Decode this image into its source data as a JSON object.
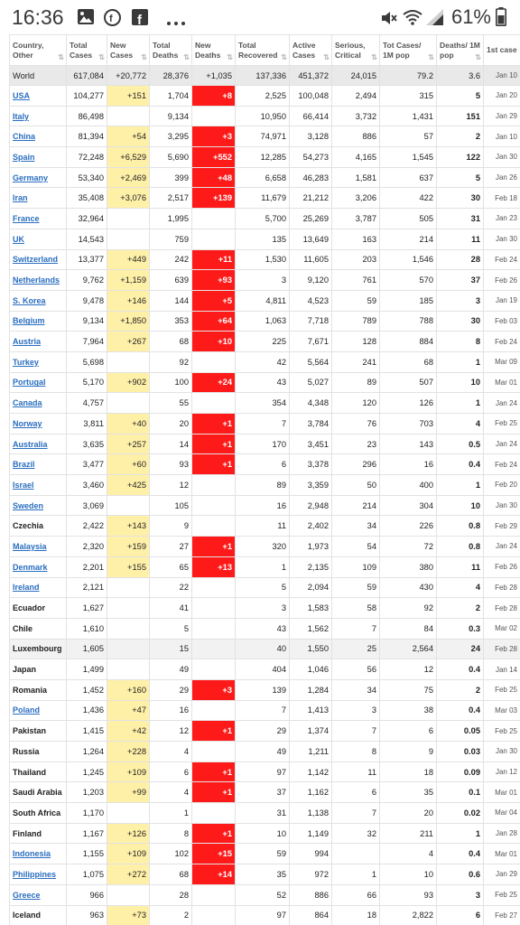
{
  "status_bar": {
    "time": "16:36",
    "battery_percent": "61%",
    "left_icons": [
      "image-icon",
      "facebook-messenger-icon",
      "facebook-icon",
      "more-dots-icon"
    ],
    "right_icons": [
      "mute-icon",
      "wifi-icon",
      "signal-icon",
      "battery-icon"
    ]
  },
  "table": {
    "headers": [
      {
        "key": "country",
        "label": "Country, Other"
      },
      {
        "key": "total_cases",
        "label": "Total Cases"
      },
      {
        "key": "new_cases",
        "label": "New Cases"
      },
      {
        "key": "total_deaths",
        "label": "Total Deaths"
      },
      {
        "key": "new_deaths",
        "label": "New Deaths"
      },
      {
        "key": "total_recovered",
        "label": "Total Recovered"
      },
      {
        "key": "active_cases",
        "label": "Active Cases"
      },
      {
        "key": "serious",
        "label": "Serious, Critical"
      },
      {
        "key": "per_million",
        "label": "Tot Cases/ 1M pop"
      },
      {
        "key": "deaths_per_million",
        "label": "Deaths/ 1M pop"
      },
      {
        "key": "first_case",
        "label": "1st case"
      }
    ],
    "world": {
      "country": "World",
      "total_cases": "617,084",
      "new_cases": "+20,772",
      "total_deaths": "28,376",
      "new_deaths": "+1,035",
      "total_recovered": "137,336",
      "active_cases": "451,372",
      "serious": "24,015",
      "per_million": "79.2",
      "deaths_per_million": "3.6",
      "first_case": "Jan 10"
    },
    "rows": [
      {
        "country": "USA",
        "link": true,
        "total_cases": "104,277",
        "new_cases": "+151",
        "total_deaths": "1,704",
        "new_deaths": "+8",
        "total_recovered": "2,525",
        "active_cases": "100,048",
        "serious": "2,494",
        "per_million": "315",
        "deaths_per_million": "5",
        "first_case": "Jan 20"
      },
      {
        "country": "Italy",
        "link": true,
        "total_cases": "86,498",
        "new_cases": "",
        "total_deaths": "9,134",
        "new_deaths": "",
        "total_recovered": "10,950",
        "active_cases": "66,414",
        "serious": "3,732",
        "per_million": "1,431",
        "deaths_per_million": "151",
        "first_case": "Jan 29"
      },
      {
        "country": "China",
        "link": true,
        "total_cases": "81,394",
        "new_cases": "+54",
        "total_deaths": "3,295",
        "new_deaths": "+3",
        "total_recovered": "74,971",
        "active_cases": "3,128",
        "serious": "886",
        "per_million": "57",
        "deaths_per_million": "2",
        "first_case": "Jan 10"
      },
      {
        "country": "Spain",
        "link": true,
        "total_cases": "72,248",
        "new_cases": "+6,529",
        "total_deaths": "5,690",
        "new_deaths": "+552",
        "total_recovered": "12,285",
        "active_cases": "54,273",
        "serious": "4,165",
        "per_million": "1,545",
        "deaths_per_million": "122",
        "first_case": "Jan 30"
      },
      {
        "country": "Germany",
        "link": true,
        "total_cases": "53,340",
        "new_cases": "+2,469",
        "total_deaths": "399",
        "new_deaths": "+48",
        "total_recovered": "6,658",
        "active_cases": "46,283",
        "serious": "1,581",
        "per_million": "637",
        "deaths_per_million": "5",
        "first_case": "Jan 26"
      },
      {
        "country": "Iran",
        "link": true,
        "total_cases": "35,408",
        "new_cases": "+3,076",
        "total_deaths": "2,517",
        "new_deaths": "+139",
        "total_recovered": "11,679",
        "active_cases": "21,212",
        "serious": "3,206",
        "per_million": "422",
        "deaths_per_million": "30",
        "first_case": "Feb 18"
      },
      {
        "country": "France",
        "link": true,
        "total_cases": "32,964",
        "new_cases": "",
        "total_deaths": "1,995",
        "new_deaths": "",
        "total_recovered": "5,700",
        "active_cases": "25,269",
        "serious": "3,787",
        "per_million": "505",
        "deaths_per_million": "31",
        "first_case": "Jan 23"
      },
      {
        "country": "UK",
        "link": true,
        "total_cases": "14,543",
        "new_cases": "",
        "total_deaths": "759",
        "new_deaths": "",
        "total_recovered": "135",
        "active_cases": "13,649",
        "serious": "163",
        "per_million": "214",
        "deaths_per_million": "11",
        "first_case": "Jan 30"
      },
      {
        "country": "Switzerland",
        "link": true,
        "total_cases": "13,377",
        "new_cases": "+449",
        "total_deaths": "242",
        "new_deaths": "+11",
        "total_recovered": "1,530",
        "active_cases": "11,605",
        "serious": "203",
        "per_million": "1,546",
        "deaths_per_million": "28",
        "first_case": "Feb 24"
      },
      {
        "country": "Netherlands",
        "link": true,
        "total_cases": "9,762",
        "new_cases": "+1,159",
        "total_deaths": "639",
        "new_deaths": "+93",
        "total_recovered": "3",
        "active_cases": "9,120",
        "serious": "761",
        "per_million": "570",
        "deaths_per_million": "37",
        "first_case": "Feb 26"
      },
      {
        "country": "S. Korea",
        "link": true,
        "total_cases": "9,478",
        "new_cases": "+146",
        "total_deaths": "144",
        "new_deaths": "+5",
        "total_recovered": "4,811",
        "active_cases": "4,523",
        "serious": "59",
        "per_million": "185",
        "deaths_per_million": "3",
        "first_case": "Jan 19"
      },
      {
        "country": "Belgium",
        "link": true,
        "total_cases": "9,134",
        "new_cases": "+1,850",
        "total_deaths": "353",
        "new_deaths": "+64",
        "total_recovered": "1,063",
        "active_cases": "7,718",
        "serious": "789",
        "per_million": "788",
        "deaths_per_million": "30",
        "first_case": "Feb 03"
      },
      {
        "country": "Austria",
        "link": true,
        "total_cases": "7,964",
        "new_cases": "+267",
        "total_deaths": "68",
        "new_deaths": "+10",
        "total_recovered": "225",
        "active_cases": "7,671",
        "serious": "128",
        "per_million": "884",
        "deaths_per_million": "8",
        "first_case": "Feb 24"
      },
      {
        "country": "Turkey",
        "link": true,
        "total_cases": "5,698",
        "new_cases": "",
        "total_deaths": "92",
        "new_deaths": "",
        "total_recovered": "42",
        "active_cases": "5,564",
        "serious": "241",
        "per_million": "68",
        "deaths_per_million": "1",
        "first_case": "Mar 09"
      },
      {
        "country": "Portugal",
        "link": true,
        "total_cases": "5,170",
        "new_cases": "+902",
        "total_deaths": "100",
        "new_deaths": "+24",
        "total_recovered": "43",
        "active_cases": "5,027",
        "serious": "89",
        "per_million": "507",
        "deaths_per_million": "10",
        "first_case": "Mar 01"
      },
      {
        "country": "Canada",
        "link": true,
        "total_cases": "4,757",
        "new_cases": "",
        "total_deaths": "55",
        "new_deaths": "",
        "total_recovered": "354",
        "active_cases": "4,348",
        "serious": "120",
        "per_million": "126",
        "deaths_per_million": "1",
        "first_case": "Jan 24"
      },
      {
        "country": "Norway",
        "link": true,
        "total_cases": "3,811",
        "new_cases": "+40",
        "total_deaths": "20",
        "new_deaths": "+1",
        "total_recovered": "7",
        "active_cases": "3,784",
        "serious": "76",
        "per_million": "703",
        "deaths_per_million": "4",
        "first_case": "Feb 25"
      },
      {
        "country": "Australia",
        "link": true,
        "total_cases": "3,635",
        "new_cases": "+257",
        "total_deaths": "14",
        "new_deaths": "+1",
        "total_recovered": "170",
        "active_cases": "3,451",
        "serious": "23",
        "per_million": "143",
        "deaths_per_million": "0.5",
        "first_case": "Jan 24"
      },
      {
        "country": "Brazil",
        "link": true,
        "total_cases": "3,477",
        "new_cases": "+60",
        "total_deaths": "93",
        "new_deaths": "+1",
        "total_recovered": "6",
        "active_cases": "3,378",
        "serious": "296",
        "per_million": "16",
        "deaths_per_million": "0.4",
        "first_case": "Feb 24"
      },
      {
        "country": "Israel",
        "link": true,
        "total_cases": "3,460",
        "new_cases": "+425",
        "total_deaths": "12",
        "new_deaths": "",
        "total_recovered": "89",
        "active_cases": "3,359",
        "serious": "50",
        "per_million": "400",
        "deaths_per_million": "1",
        "first_case": "Feb 20"
      },
      {
        "country": "Sweden",
        "link": true,
        "total_cases": "3,069",
        "new_cases": "",
        "total_deaths": "105",
        "new_deaths": "",
        "total_recovered": "16",
        "active_cases": "2,948",
        "serious": "214",
        "per_million": "304",
        "deaths_per_million": "10",
        "first_case": "Jan 30"
      },
      {
        "country": "Czechia",
        "link": false,
        "total_cases": "2,422",
        "new_cases": "+143",
        "total_deaths": "9",
        "new_deaths": "",
        "total_recovered": "11",
        "active_cases": "2,402",
        "serious": "34",
        "per_million": "226",
        "deaths_per_million": "0.8",
        "first_case": "Feb 29"
      },
      {
        "country": "Malaysia",
        "link": true,
        "total_cases": "2,320",
        "new_cases": "+159",
        "total_deaths": "27",
        "new_deaths": "+1",
        "total_recovered": "320",
        "active_cases": "1,973",
        "serious": "54",
        "per_million": "72",
        "deaths_per_million": "0.8",
        "first_case": "Jan 24"
      },
      {
        "country": "Denmark",
        "link": true,
        "total_cases": "2,201",
        "new_cases": "+155",
        "total_deaths": "65",
        "new_deaths": "+13",
        "total_recovered": "1",
        "active_cases": "2,135",
        "serious": "109",
        "per_million": "380",
        "deaths_per_million": "11",
        "first_case": "Feb 26"
      },
      {
        "country": "Ireland",
        "link": true,
        "total_cases": "2,121",
        "new_cases": "",
        "total_deaths": "22",
        "new_deaths": "",
        "total_recovered": "5",
        "active_cases": "2,094",
        "serious": "59",
        "per_million": "430",
        "deaths_per_million": "4",
        "first_case": "Feb 28"
      },
      {
        "country": "Ecuador",
        "link": false,
        "total_cases": "1,627",
        "new_cases": "",
        "total_deaths": "41",
        "new_deaths": "",
        "total_recovered": "3",
        "active_cases": "1,583",
        "serious": "58",
        "per_million": "92",
        "deaths_per_million": "2",
        "first_case": "Feb 28"
      },
      {
        "country": "Chile",
        "link": false,
        "total_cases": "1,610",
        "new_cases": "",
        "total_deaths": "5",
        "new_deaths": "",
        "total_recovered": "43",
        "active_cases": "1,562",
        "serious": "7",
        "per_million": "84",
        "deaths_per_million": "0.3",
        "first_case": "Mar 02"
      },
      {
        "country": "Luxembourg",
        "link": false,
        "highlight": true,
        "total_cases": "1,605",
        "new_cases": "",
        "total_deaths": "15",
        "new_deaths": "",
        "total_recovered": "40",
        "active_cases": "1,550",
        "serious": "25",
        "per_million": "2,564",
        "deaths_per_million": "24",
        "first_case": "Feb 28"
      },
      {
        "country": "Japan",
        "link": false,
        "total_cases": "1,499",
        "new_cases": "",
        "total_deaths": "49",
        "new_deaths": "",
        "total_recovered": "404",
        "active_cases": "1,046",
        "serious": "56",
        "per_million": "12",
        "deaths_per_million": "0.4",
        "first_case": "Jan 14"
      },
      {
        "country": "Romania",
        "link": false,
        "total_cases": "1,452",
        "new_cases": "+160",
        "total_deaths": "29",
        "new_deaths": "+3",
        "total_recovered": "139",
        "active_cases": "1,284",
        "serious": "34",
        "per_million": "75",
        "deaths_per_million": "2",
        "first_case": "Feb 25"
      },
      {
        "country": "Poland",
        "link": true,
        "total_cases": "1,436",
        "new_cases": "+47",
        "total_deaths": "16",
        "new_deaths": "",
        "total_recovered": "7",
        "active_cases": "1,413",
        "serious": "3",
        "per_million": "38",
        "deaths_per_million": "0.4",
        "first_case": "Mar 03"
      },
      {
        "country": "Pakistan",
        "link": false,
        "total_cases": "1,415",
        "new_cases": "+42",
        "total_deaths": "12",
        "new_deaths": "+1",
        "total_recovered": "29",
        "active_cases": "1,374",
        "serious": "7",
        "per_million": "6",
        "deaths_per_million": "0.05",
        "first_case": "Feb 25"
      },
      {
        "country": "Russia",
        "link": false,
        "total_cases": "1,264",
        "new_cases": "+228",
        "total_deaths": "4",
        "new_deaths": "",
        "total_recovered": "49",
        "active_cases": "1,211",
        "serious": "8",
        "per_million": "9",
        "deaths_per_million": "0.03",
        "first_case": "Jan 30"
      },
      {
        "country": "Thailand",
        "link": false,
        "total_cases": "1,245",
        "new_cases": "+109",
        "total_deaths": "6",
        "new_deaths": "+1",
        "total_recovered": "97",
        "active_cases": "1,142",
        "serious": "11",
        "per_million": "18",
        "deaths_per_million": "0.09",
        "first_case": "Jan 12"
      },
      {
        "country": "Saudi Arabia",
        "link": false,
        "total_cases": "1,203",
        "new_cases": "+99",
        "total_deaths": "4",
        "new_deaths": "+1",
        "total_recovered": "37",
        "active_cases": "1,162",
        "serious": "6",
        "per_million": "35",
        "deaths_per_million": "0.1",
        "first_case": "Mar 01"
      },
      {
        "country": "South Africa",
        "link": false,
        "total_cases": "1,170",
        "new_cases": "",
        "total_deaths": "1",
        "new_deaths": "",
        "total_recovered": "31",
        "active_cases": "1,138",
        "serious": "7",
        "per_million": "20",
        "deaths_per_million": "0.02",
        "first_case": "Mar 04"
      },
      {
        "country": "Finland",
        "link": false,
        "total_cases": "1,167",
        "new_cases": "+126",
        "total_deaths": "8",
        "new_deaths": "+1",
        "total_recovered": "10",
        "active_cases": "1,149",
        "serious": "32",
        "per_million": "211",
        "deaths_per_million": "1",
        "first_case": "Jan 28"
      },
      {
        "country": "Indonesia",
        "link": true,
        "total_cases": "1,155",
        "new_cases": "+109",
        "total_deaths": "102",
        "new_deaths": "+15",
        "total_recovered": "59",
        "active_cases": "994",
        "serious": "",
        "per_million": "4",
        "deaths_per_million": "0.4",
        "first_case": "Mar 01"
      },
      {
        "country": "Philippines",
        "link": true,
        "total_cases": "1,075",
        "new_cases": "+272",
        "total_deaths": "68",
        "new_deaths": "+14",
        "total_recovered": "35",
        "active_cases": "972",
        "serious": "1",
        "per_million": "10",
        "deaths_per_million": "0.6",
        "first_case": "Jan 29"
      },
      {
        "country": "Greece",
        "link": true,
        "total_cases": "966",
        "new_cases": "",
        "total_deaths": "28",
        "new_deaths": "",
        "total_recovered": "52",
        "active_cases": "886",
        "serious": "66",
        "per_million": "93",
        "deaths_per_million": "3",
        "first_case": "Feb 25"
      },
      {
        "country": "Iceland",
        "link": false,
        "total_cases": "963",
        "new_cases": "+73",
        "total_deaths": "2",
        "new_deaths": "",
        "total_recovered": "97",
        "active_cases": "864",
        "serious": "18",
        "per_million": "2,822",
        "deaths_per_million": "6",
        "first_case": "Feb 27"
      }
    ]
  },
  "colors": {
    "new_cases_bg": "#fff0a8",
    "new_deaths_bg": "#ff1a1a",
    "link": "#2a6ec0",
    "world_row_bg": "#e9e9e9"
  }
}
